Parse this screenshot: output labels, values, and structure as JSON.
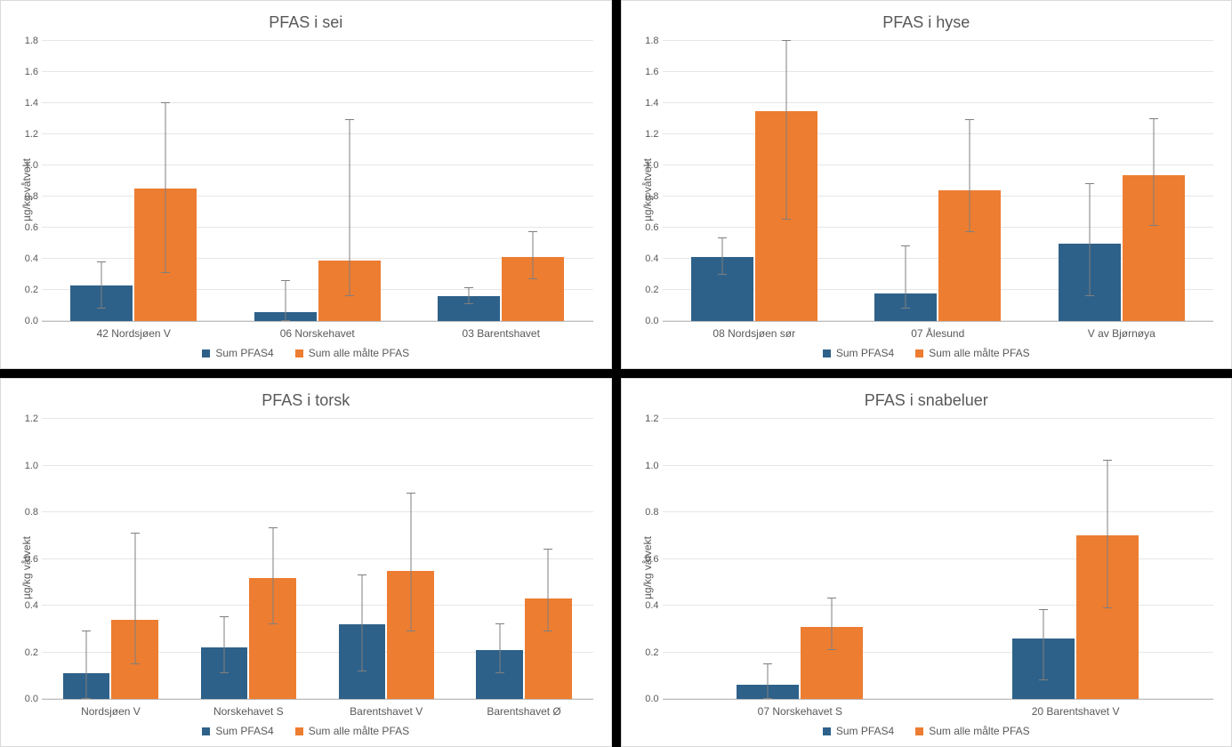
{
  "global": {
    "background_color": "#000000",
    "panel_bg": "#ffffff",
    "panel_border": "#d9d9d9",
    "grid_color": "#e6e6e6",
    "axis_color": "#bfbfbf",
    "text_color": "#595959",
    "error_color": "#7f7f7f",
    "title_fontsize": 18,
    "label_fontsize": 12,
    "tick_fontsize": 11,
    "series_colors": {
      "pfas4": "#2e6189",
      "all": "#ed7d31"
    },
    "legend_labels": {
      "pfas4": "Sum PFAS4",
      "all": "Sum alle målte PFAS"
    },
    "ylabel": "µg/kg våtvekt"
  },
  "panels": [
    {
      "id": "sei",
      "title": "PFAS i sei",
      "ylim": [
        0.0,
        1.8
      ],
      "ytick_step": 0.2,
      "categories": [
        "42 Nordsjøen V",
        "06 Norskehavet",
        "03 Barentshavet"
      ],
      "series": {
        "pfas4": {
          "values": [
            0.23,
            0.06,
            0.16
          ],
          "err_low": [
            0.08,
            0.0,
            0.11
          ],
          "err_high": [
            0.38,
            0.26,
            0.21
          ]
        },
        "all": {
          "values": [
            0.85,
            0.39,
            0.41
          ],
          "err_low": [
            0.31,
            0.16,
            0.27
          ],
          "err_high": [
            1.4,
            1.29,
            0.57
          ]
        }
      }
    },
    {
      "id": "hyse",
      "title": "PFAS i hyse",
      "ylim": [
        0.0,
        1.8
      ],
      "ytick_step": 0.2,
      "categories": [
        "08 Nordsjøen sør",
        "07 Ålesund",
        "V av Bjørnøya"
      ],
      "series": {
        "pfas4": {
          "values": [
            0.41,
            0.18,
            0.5
          ],
          "err_low": [
            0.3,
            0.08,
            0.16
          ],
          "err_high": [
            0.53,
            0.48,
            0.88
          ]
        },
        "all": {
          "values": [
            1.35,
            0.84,
            0.94
          ],
          "err_low": [
            0.65,
            0.57,
            0.61
          ],
          "err_high": [
            1.8,
            1.29,
            1.3
          ]
        }
      }
    },
    {
      "id": "torsk",
      "title": "PFAS i torsk",
      "ylim": [
        0.0,
        1.2
      ],
      "ytick_step": 0.2,
      "categories": [
        "Nordsjøen V",
        "Norskehavet S",
        "Barentshavet V",
        "Barentshavet Ø"
      ],
      "series": {
        "pfas4": {
          "values": [
            0.11,
            0.22,
            0.32,
            0.21
          ],
          "err_low": [
            0.0,
            0.11,
            0.12,
            0.11
          ],
          "err_high": [
            0.29,
            0.35,
            0.53,
            0.32
          ]
        },
        "all": {
          "values": [
            0.34,
            0.52,
            0.55,
            0.43
          ],
          "err_low": [
            0.15,
            0.32,
            0.29,
            0.29
          ],
          "err_high": [
            0.71,
            0.73,
            0.88,
            0.64
          ]
        }
      }
    },
    {
      "id": "snabeluer",
      "title": "PFAS i snabeluer",
      "ylim": [
        0.0,
        1.2
      ],
      "ytick_step": 0.2,
      "categories": [
        "07 Norskehavet S",
        "20 Barentshavet V"
      ],
      "series": {
        "pfas4": {
          "values": [
            0.06,
            0.26
          ],
          "err_low": [
            0.0,
            0.08
          ],
          "err_high": [
            0.15,
            0.38
          ]
        },
        "all": {
          "values": [
            0.31,
            0.7
          ],
          "err_low": [
            0.21,
            0.39
          ],
          "err_high": [
            0.43,
            1.02
          ]
        }
      }
    }
  ]
}
